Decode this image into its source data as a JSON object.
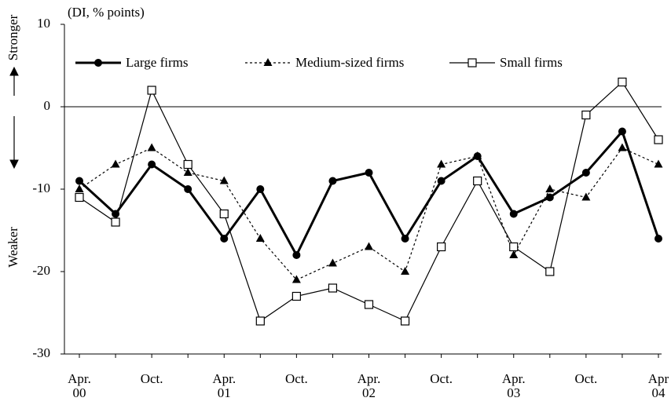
{
  "chart_data": {
    "type": "line",
    "unit_label": "(DI, % points)",
    "upper_side_label": "Stronger",
    "lower_side_label": "Weaker",
    "categories": [
      [
        "Apr.",
        "00"
      ],
      null,
      [
        "Oct."
      ],
      null,
      [
        "Apr.",
        "01"
      ],
      null,
      [
        "Oct."
      ],
      null,
      [
        "Apr.",
        "02"
      ],
      null,
      [
        "Oct."
      ],
      null,
      [
        "Apr.",
        "03"
      ],
      null,
      [
        "Oct."
      ],
      null,
      [
        "Apr",
        "04"
      ]
    ],
    "series": [
      {
        "name": "Large firms",
        "color": "#000000",
        "marker": "circle",
        "dash": "solid",
        "width": 3,
        "values": [
          -9,
          -13,
          -7,
          -10,
          -16,
          -10,
          -18,
          -9,
          -8,
          -16,
          -9,
          -6,
          -13,
          -11,
          -8,
          -3,
          -16
        ]
      },
      {
        "name": "Medium-sized firms",
        "color": "#000000",
        "marker": "triangle",
        "dash": "dotted",
        "width": 1.2,
        "values": [
          -10,
          -7,
          -5,
          -8,
          -9,
          -16,
          -21,
          -19,
          -17,
          -20,
          -7,
          -6,
          -18,
          -10,
          -11,
          -5,
          -7
        ]
      },
      {
        "name": "Small firms",
        "color": "#000000",
        "marker": "square",
        "dash": "solid",
        "width": 1.2,
        "values": [
          -11,
          -14,
          2,
          -7,
          -13,
          -26,
          -23,
          -22,
          -24,
          -26,
          -17,
          -9,
          -17,
          -20,
          -1,
          3,
          -4
        ]
      }
    ],
    "ylim": [
      -30,
      10
    ],
    "yticks": [
      -30,
      -20,
      -10,
      0,
      10
    ],
    "zero_line": true,
    "legend": "top-left"
  }
}
